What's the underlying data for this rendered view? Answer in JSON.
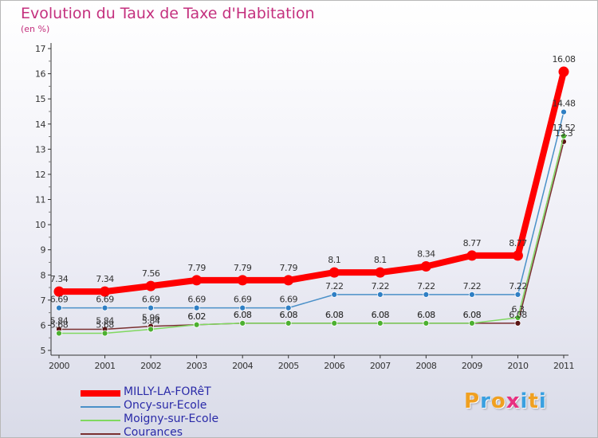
{
  "header": {
    "title": "Evolution du Taux de Taxe d'Habitation",
    "subtitle": "(en %)"
  },
  "logo": {
    "text": "Proxiti"
  },
  "chart_data": {
    "type": "line",
    "title": "Evolution du Taux de Taxe d'Habitation",
    "subtitle": "(en %)",
    "xlabel": "",
    "ylabel": "",
    "x": [
      "2000",
      "2001",
      "2002",
      "2003",
      "2004",
      "2005",
      "2006",
      "2007",
      "2008",
      "2009",
      "2010",
      "2011"
    ],
    "ylim": [
      5,
      17
    ],
    "yticks": [
      "5",
      "6",
      "7",
      "8",
      "9",
      "10",
      "11",
      "12",
      "13",
      "14",
      "15",
      "16",
      "17"
    ],
    "grid": false,
    "legend_position": "bottom-left",
    "series": [
      {
        "name": "MILLY-LA-FORêT",
        "color": "#ff0000",
        "thick": true,
        "values": [
          7.34,
          7.34,
          7.56,
          7.79,
          7.79,
          7.79,
          8.1,
          8.1,
          8.34,
          8.77,
          8.77,
          16.08
        ],
        "labels": [
          "7.34",
          "7.34",
          "7.56",
          "7.79",
          "7.79",
          "7.79",
          "8.1",
          "8.1",
          "8.34",
          "8.77",
          "8.77",
          "16.08"
        ]
      },
      {
        "name": "Oncy-sur-Ecole",
        "color": "#4a90c8",
        "point": "#2f7fc4",
        "values": [
          6.69,
          6.69,
          6.69,
          6.69,
          6.69,
          6.69,
          7.22,
          7.22,
          7.22,
          7.22,
          7.22,
          14.48
        ],
        "labels": [
          "6.69",
          "6.69",
          "6.69",
          "6.69",
          "6.69",
          "6.69",
          "7.22",
          "7.22",
          "7.22",
          "7.22",
          "7.22",
          "14.48"
        ]
      },
      {
        "name": "Moigny-sur-Ecole",
        "color": "#80d860",
        "point": "#4cb030",
        "values": [
          5.68,
          5.68,
          5.84,
          6.02,
          6.08,
          6.08,
          6.08,
          6.08,
          6.08,
          6.08,
          6.3,
          13.52
        ],
        "labels": [
          "5.68",
          "5.68",
          "5.84",
          "6.02",
          "6.08",
          "6.08",
          "6.08",
          "6.08",
          "6.08",
          "6.08",
          "6.3",
          "13.52"
        ]
      },
      {
        "name": "Courances",
        "color": "#7a3030",
        "point": "#5a1414",
        "values": [
          5.84,
          5.84,
          5.96,
          6.02,
          6.08,
          6.08,
          6.08,
          6.08,
          6.08,
          6.08,
          6.08,
          13.3
        ],
        "labels": [
          "5.84",
          "5.84",
          "5.96",
          "6.02",
          "6.08",
          "6.08",
          "6.08",
          "6.08",
          "6.08",
          "6.08",
          "6.08",
          "13.3"
        ]
      }
    ]
  }
}
